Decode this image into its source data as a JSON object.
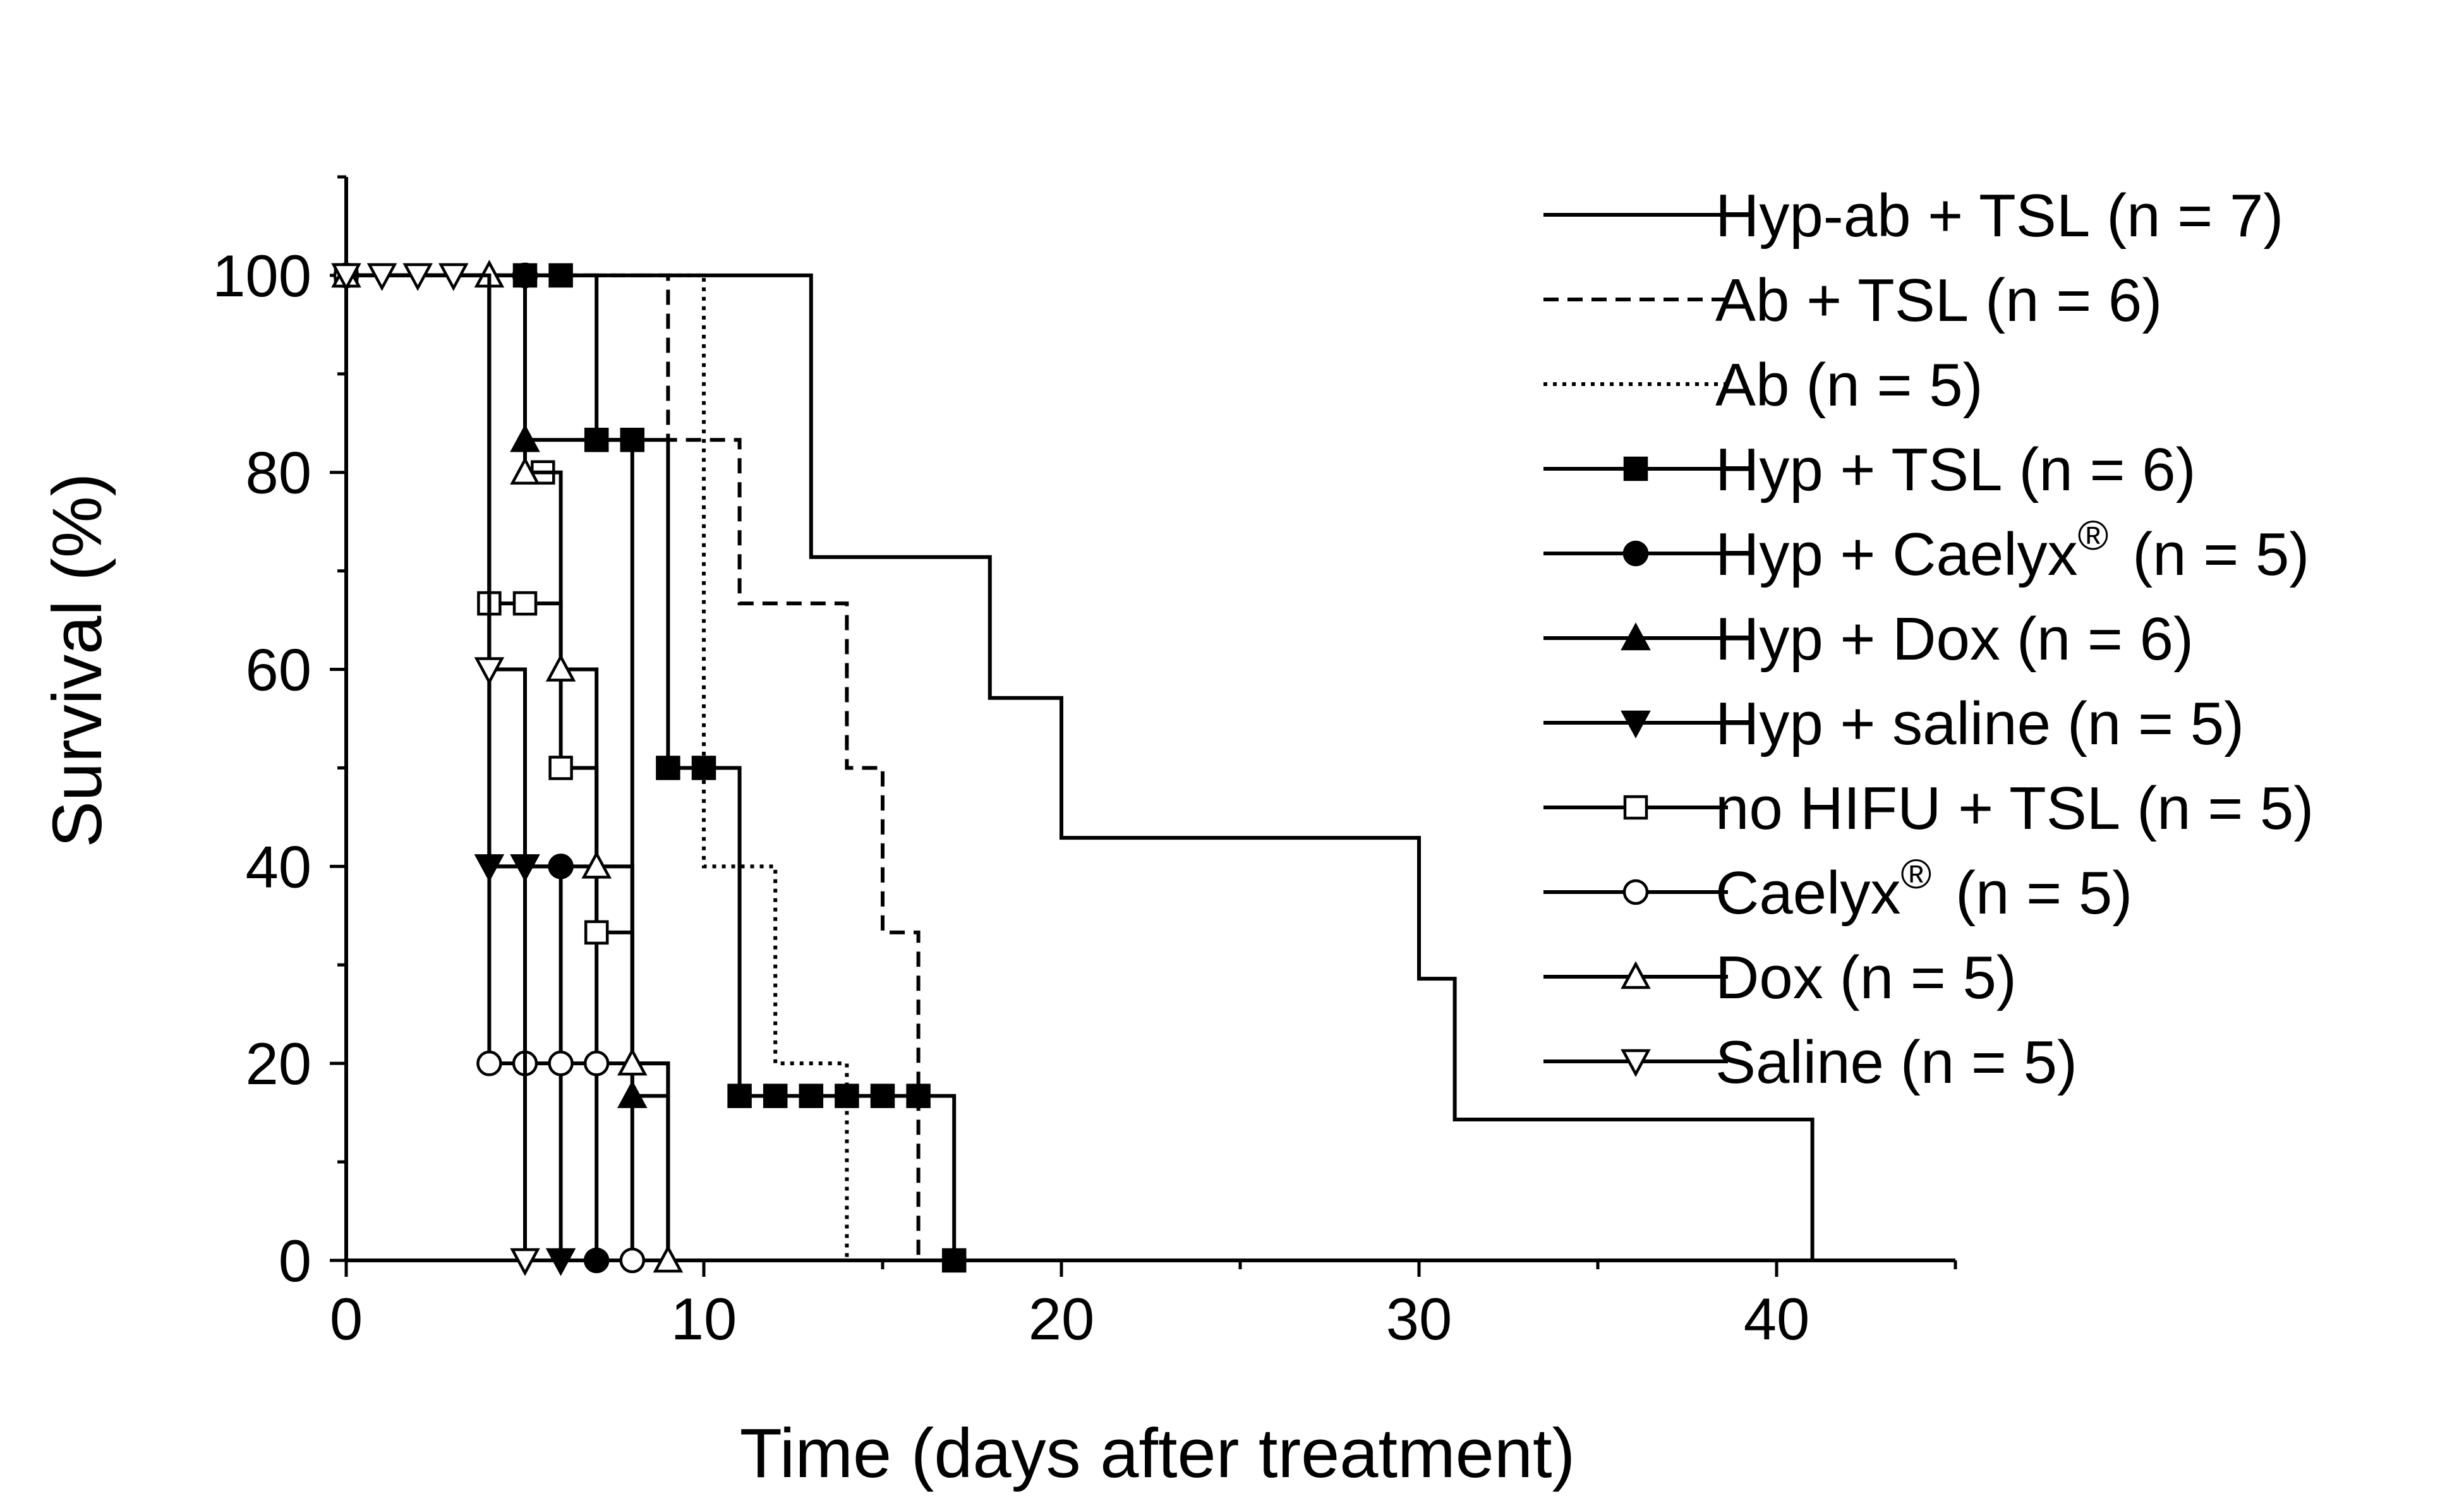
{
  "chart_data": {
    "type": "line",
    "subtype": "kaplan-meier step",
    "xlabel": "Time (days after treatment)",
    "ylabel": "Survival (%)",
    "xlim": [
      0,
      45
    ],
    "ylim": [
      0,
      110
    ],
    "xticks": [
      0,
      10,
      20,
      30,
      40
    ],
    "yticks": [
      0,
      20,
      40,
      60,
      80,
      100
    ],
    "legend_position": "top-right",
    "series": [
      {
        "name": "Hyp-ab + TSL",
        "n_label": "(n = 7)",
        "line": "solid",
        "marker": "none",
        "x": [
          0,
          13,
          18,
          20,
          30,
          31,
          41
        ],
        "y": [
          100,
          71.4,
          57.1,
          42.9,
          28.6,
          14.3,
          0
        ],
        "censored": []
      },
      {
        "name": "Ab + TSL",
        "n_label": "(n = 6)",
        "line": "dashed",
        "marker": "none",
        "x": [
          0,
          9,
          11,
          14,
          15,
          16
        ],
        "y": [
          100,
          83.3,
          66.7,
          50,
          33.3,
          0
        ],
        "censored": []
      },
      {
        "name": "Ab",
        "n_label": "(n = 5)",
        "line": "dotted",
        "marker": "none",
        "x": [
          0,
          10,
          12,
          14
        ],
        "y": [
          100,
          40,
          20,
          0
        ],
        "censored": []
      },
      {
        "name": "Hyp + TSL",
        "n_label": "(n = 6)",
        "line": "solid",
        "marker": "filled-square",
        "x": [
          0,
          7,
          9,
          11,
          17
        ],
        "y": [
          100,
          83.3,
          50,
          16.7,
          0
        ],
        "censored": [
          [
            5,
            100
          ],
          [
            6,
            100
          ],
          [
            7,
            83.3
          ],
          [
            8,
            83.3
          ],
          [
            9,
            50
          ],
          [
            10,
            50
          ],
          [
            11,
            16.7
          ],
          [
            12,
            16.7
          ],
          [
            13,
            16.7
          ],
          [
            14,
            16.7
          ],
          [
            15,
            16.7
          ],
          [
            16,
            16.7
          ],
          [
            17,
            0
          ]
        ]
      },
      {
        "name": "Hyp + Caelyx",
        "sup": "®",
        "n_label": "(n = 5)",
        "line": "solid",
        "marker": "filled-circle",
        "x": [
          0,
          4,
          7
        ],
        "y": [
          100,
          40,
          0
        ],
        "censored": [
          [
            5,
            100
          ],
          [
            6,
            40
          ],
          [
            7,
            0
          ]
        ]
      },
      {
        "name": "Hyp + Dox",
        "n_label": "(n = 6)",
        "line": "solid",
        "marker": "filled-triangle-up",
        "x": [
          0,
          5,
          8,
          9
        ],
        "y": [
          100,
          83.3,
          16.7,
          0
        ],
        "censored": [
          [
            5,
            83.3
          ],
          [
            8,
            16.7
          ]
        ]
      },
      {
        "name": "Hyp + saline",
        "n_label": "(n = 5)",
        "line": "solid",
        "marker": "filled-triangle-down",
        "x": [
          0,
          4,
          6
        ],
        "y": [
          100,
          40,
          0
        ],
        "censored": [
          [
            4,
            40
          ],
          [
            5,
            40
          ],
          [
            6,
            0
          ]
        ]
      },
      {
        "name": "no HIFU + TSL",
        "n_label": "(n = 5)",
        "line": "solid",
        "marker": "open-square",
        "x": [
          0,
          4,
          6,
          7,
          8,
          9
        ],
        "y": [
          100,
          66.7,
          50,
          33.3,
          20,
          0
        ],
        "censored": [
          [
            0,
            100
          ],
          [
            4,
            66.7
          ],
          [
            5,
            66.7
          ],
          [
            5.5,
            80
          ],
          [
            6,
            50
          ],
          [
            7,
            33.3
          ]
        ]
      },
      {
        "name": "Caelyx",
        "sup": "®",
        "n_label": "(n = 5)",
        "line": "solid",
        "marker": "open-circle",
        "x": [
          0,
          4,
          8
        ],
        "y": [
          100,
          20,
          0
        ],
        "censored": [
          [
            0,
            100
          ],
          [
            4,
            20
          ],
          [
            5,
            20
          ],
          [
            6,
            20
          ],
          [
            7,
            20
          ],
          [
            8,
            0
          ]
        ]
      },
      {
        "name": "Dox",
        "n_label": "(n = 5)",
        "line": "solid",
        "marker": "open-triangle-up",
        "x": [
          0,
          5,
          6,
          7,
          8,
          9
        ],
        "y": [
          100,
          80,
          60,
          40,
          20,
          0
        ],
        "censored": [
          [
            0,
            100
          ],
          [
            4,
            100
          ],
          [
            5,
            80
          ],
          [
            6,
            60
          ],
          [
            7,
            40
          ],
          [
            8,
            20
          ],
          [
            9,
            0
          ]
        ]
      },
      {
        "name": "Saline",
        "n_label": "(n = 5)",
        "line": "solid",
        "marker": "open-triangle-down",
        "x": [
          0,
          4,
          5
        ],
        "y": [
          100,
          60,
          0
        ],
        "censored": [
          [
            0,
            100
          ],
          [
            1,
            100
          ],
          [
            2,
            100
          ],
          [
            3,
            100
          ],
          [
            4,
            60
          ],
          [
            5,
            0
          ]
        ]
      }
    ]
  }
}
